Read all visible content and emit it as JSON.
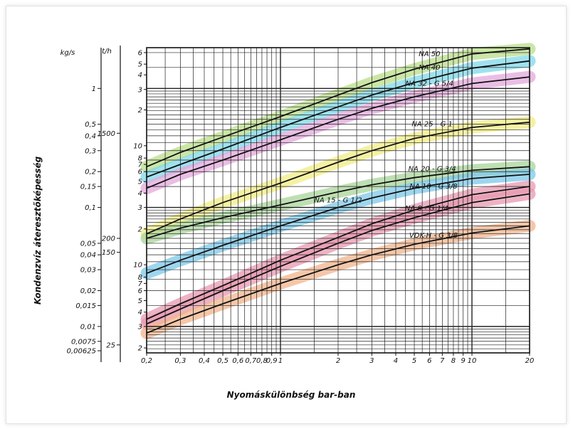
{
  "chart_data": {
    "type": "line",
    "xlabel": "Nyomáskülönbség bar-ban",
    "ylabel": "Kondenzvíz áteresztőképesség",
    "x_scale": "log",
    "y_scale": "log",
    "xlim": [
      0.2,
      20
    ],
    "ylim_kg_s": [
      0.006,
      2.2
    ],
    "grid": true,
    "left_axis_unit_1": "kg/s",
    "left_axis_unit_2": "t/h",
    "x_tick_labels": [
      "0,2",
      "0,3",
      "0,4",
      "0,5",
      "0,6",
      "0,7",
      "0,8",
      "0,9",
      "1",
      "2",
      "3",
      "4",
      "5",
      "6",
      "7",
      "8",
      "9",
      "10",
      "20"
    ],
    "x_tick_values": [
      0.2,
      0.3,
      0.4,
      0.5,
      0.6,
      0.7,
      0.8,
      0.9,
      1,
      2,
      3,
      4,
      5,
      6,
      7,
      8,
      9,
      10,
      20
    ],
    "kg_s_ticks": [
      {
        "label": "1",
        "value": 1
      },
      {
        "label": "0,5",
        "value": 0.5
      },
      {
        "label": "0,4",
        "value": 0.4
      },
      {
        "label": "0,3",
        "value": 0.3
      },
      {
        "label": "0,2",
        "value": 0.2
      },
      {
        "label": "0,15",
        "value": 0.15
      },
      {
        "label": "0,1",
        "value": 0.1
      },
      {
        "label": "0,05",
        "value": 0.05
      },
      {
        "label": "0,04",
        "value": 0.04
      },
      {
        "label": "0,03",
        "value": 0.03
      },
      {
        "label": "0,02",
        "value": 0.02
      },
      {
        "label": "0,015",
        "value": 0.015
      },
      {
        "label": "0,01",
        "value": 0.01
      },
      {
        "label": "0,0075",
        "value": 0.0075
      },
      {
        "label": "0,00625",
        "value": 0.00625
      }
    ],
    "t_h_ticks": [
      {
        "label": "1500",
        "value": 0.42
      },
      {
        "label": "200",
        "value": 0.055
      },
      {
        "label": "150",
        "value": 0.042
      },
      {
        "label": "25",
        "value": 0.007
      }
    ],
    "inner_ticks": [
      {
        "label": "6",
        "value": 2.0
      },
      {
        "label": "5",
        "value": 1.6
      },
      {
        "label": "4",
        "value": 1.3
      },
      {
        "label": "3",
        "value": 0.98
      },
      {
        "label": "2",
        "value": 0.66
      },
      {
        "label": "10",
        "value": 0.33
      },
      {
        "label": "8",
        "value": 0.26
      },
      {
        "label": "7",
        "value": 0.23
      },
      {
        "label": "6",
        "value": 0.2
      },
      {
        "label": "5",
        "value": 0.165
      },
      {
        "label": "4",
        "value": 0.132
      },
      {
        "label": "3",
        "value": 0.1
      },
      {
        "label": "2",
        "value": 0.066
      },
      {
        "label": "10",
        "value": 0.033
      },
      {
        "label": "8",
        "value": 0.026
      },
      {
        "label": "7",
        "value": 0.023
      },
      {
        "label": "6",
        "value": 0.02
      },
      {
        "label": "5",
        "value": 0.0165
      },
      {
        "label": "4",
        "value": 0.0132
      },
      {
        "label": "3",
        "value": 0.01
      },
      {
        "label": "2",
        "value": 0.0066
      }
    ],
    "series": [
      {
        "name": "NA 50",
        "color": "#b9dd8a",
        "label_x": 6.0,
        "label_y": 1.95,
        "x": [
          0.2,
          0.3,
          0.5,
          1,
          2,
          3,
          5,
          10,
          20
        ],
        "y": [
          0.22,
          0.29,
          0.39,
          0.58,
          0.88,
          1.12,
          1.45,
          1.95,
          2.15
        ]
      },
      {
        "name": "NA 40",
        "color": "#7fd8ea",
        "label_x": 6.0,
        "label_y": 1.5,
        "x": [
          0.2,
          0.3,
          0.5,
          1,
          2,
          3,
          5,
          10,
          20
        ],
        "y": [
          0.18,
          0.23,
          0.31,
          0.47,
          0.7,
          0.88,
          1.12,
          1.48,
          1.7
        ]
      },
      {
        "name": "NA 32 - G 5/4",
        "color": "#e3a8dc",
        "label_x": 6.0,
        "label_y": 1.1,
        "x": [
          0.2,
          0.3,
          0.5,
          1,
          2,
          3,
          5,
          10,
          20
        ],
        "y": [
          0.145,
          0.19,
          0.25,
          0.37,
          0.55,
          0.68,
          0.85,
          1.1,
          1.25
        ]
      },
      {
        "name": "NA 25 - G 1",
        "color": "#f2ec86",
        "label_x": 6.2,
        "label_y": 0.5,
        "x": [
          0.2,
          0.3,
          0.5,
          1,
          2,
          3,
          5,
          10,
          20
        ],
        "y": [
          0.06,
          0.08,
          0.11,
          0.16,
          0.24,
          0.3,
          0.38,
          0.47,
          0.52
        ]
      },
      {
        "name": "NA 20 - G 3/4",
        "color": "#a8d49a",
        "label_x": 6.2,
        "label_y": 0.21,
        "x": [
          0.2,
          0.3,
          0.5,
          1,
          2,
          3,
          5,
          10,
          20
        ],
        "y": [
          0.055,
          0.067,
          0.082,
          0.105,
          0.135,
          0.155,
          0.178,
          0.205,
          0.22
        ]
      },
      {
        "name": "NA 15 - G 1/2",
        "color": "#7cc8ea",
        "label_x": 2.0,
        "label_y": 0.115,
        "x": [
          0.2,
          0.3,
          0.5,
          1,
          2,
          3,
          5,
          10,
          20
        ],
        "y": [
          0.028,
          0.036,
          0.048,
          0.07,
          0.1,
          0.12,
          0.145,
          0.175,
          0.19
        ]
      },
      {
        "name": "NA 10 - G 3/8",
        "color": "#e79ab0",
        "label_x": 6.3,
        "label_y": 0.15,
        "x": [
          0.2,
          0.3,
          0.5,
          1,
          2,
          3,
          5,
          10,
          20
        ],
        "y": [
          0.0115,
          0.0155,
          0.022,
          0.036,
          0.056,
          0.073,
          0.095,
          0.128,
          0.15
        ]
      },
      {
        "name": "NA 8 - G 1/4",
        "color": "#e79ab0",
        "label_x": 5.8,
        "label_y": 0.098,
        "x": [
          0.2,
          0.3,
          0.5,
          1,
          2,
          3,
          5,
          10,
          20
        ],
        "y": [
          0.0105,
          0.014,
          0.02,
          0.032,
          0.05,
          0.064,
          0.082,
          0.11,
          0.13
        ]
      },
      {
        "name": "VDK-H - G 3/8",
        "color": "#f2b48c",
        "label_x": 6.3,
        "label_y": 0.058,
        "x": [
          0.2,
          0.3,
          0.5,
          1,
          2,
          3,
          5,
          10,
          20
        ],
        "y": [
          0.0088,
          0.0115,
          0.0155,
          0.023,
          0.033,
          0.04,
          0.049,
          0.061,
          0.07
        ]
      }
    ]
  }
}
